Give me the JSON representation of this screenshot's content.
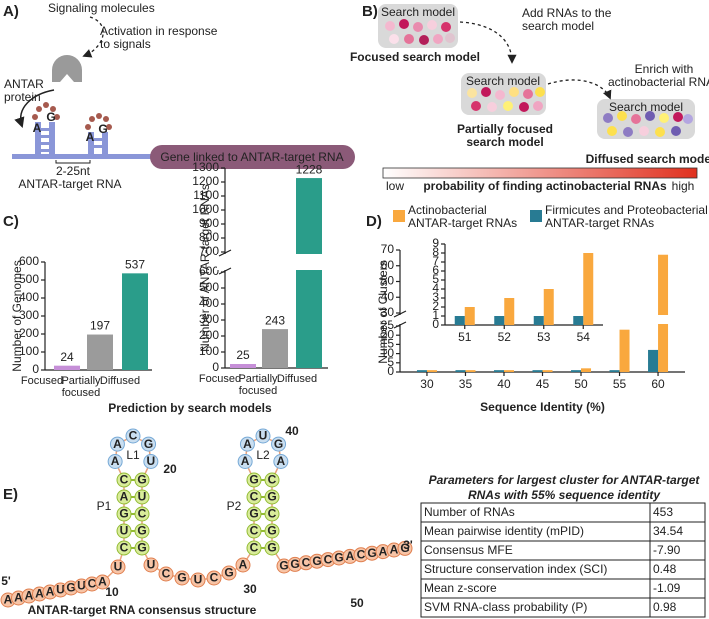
{
  "panel_a": {
    "label": "A)",
    "signal_label": "Signaling molecules",
    "activation_label": [
      "Activation in response",
      "to signals"
    ],
    "protein_label": [
      "ANTAR",
      "protein"
    ],
    "loop_letters": [
      "A",
      "G",
      "A",
      "G"
    ],
    "spacer_label": "2-25nt",
    "rna_label": "ANTAR-target RNA",
    "gene_label": "Gene linked to ANTAR-target RNA"
  },
  "panel_b": {
    "label": "B)",
    "models": [
      {
        "box_label": "Search model",
        "name": [
          "Focused search model"
        ]
      },
      {
        "box_label": "Search model",
        "name": [
          "Partially focused",
          "search model"
        ]
      },
      {
        "box_label": "Search model",
        "name": [
          "Diffused search model"
        ]
      }
    ],
    "steps": [
      [
        "Add RNAs to the",
        "search model"
      ],
      [
        "Enrich with",
        "actinobacterial RNAs"
      ]
    ],
    "scale": {
      "low": "low",
      "title": "probability of finding actinobacterial RNAs",
      "high": "high"
    }
  },
  "panel_c": {
    "label": "C)",
    "xlabel": "Prediction by search models"
  },
  "panel_d": {
    "label": "D)"
  },
  "chart_data": [
    {
      "type": "bar",
      "ylabel": "Number of Genomes",
      "categories": [
        "Focused",
        "Partially focused",
        "Diffused"
      ],
      "values": [
        24,
        197,
        537
      ],
      "colors": [
        "#c68fd8",
        "#9b9b9b",
        "#2a9d8a"
      ],
      "ylim": [
        0,
        600
      ],
      "yticks": [
        0,
        100,
        200,
        300,
        400,
        500,
        600
      ]
    },
    {
      "type": "bar",
      "ylabel": "Number of ANTAR-target RNAs",
      "categories": [
        "Focused",
        "Partially focused",
        "Diffused"
      ],
      "values": [
        25,
        243,
        1228
      ],
      "colors": [
        "#c68fd8",
        "#9b9b9b",
        "#2a9d8a"
      ],
      "ylim": [
        0,
        1300
      ],
      "ybreak": [
        600,
        700
      ],
      "yticks": [
        0,
        100,
        200,
        300,
        400,
        500,
        600,
        700,
        800,
        900,
        1000,
        1100,
        1200,
        1300
      ]
    },
    {
      "type": "grouped_bar",
      "xlabel": "Sequence Identity (%)",
      "ylabel": "Number of Clusters",
      "x": [
        30,
        35,
        40,
        45,
        50,
        55,
        60
      ],
      "xlim": [
        26.5,
        63.5
      ],
      "xticks": [
        30,
        35,
        40,
        45,
        50,
        55,
        60
      ],
      "ylim": [
        0,
        70
      ],
      "ybreak": [
        25,
        30
      ],
      "yticks": [
        0,
        5,
        10,
        15,
        20,
        25,
        30,
        40,
        50,
        60,
        70
      ],
      "legend": "top",
      "series": [
        {
          "name": "Actinobacterial ANTAR-target RNAs",
          "color": "#f9a83e",
          "values": [
            1,
            1,
            1,
            1,
            2,
            23,
            67
          ]
        },
        {
          "name": "Firmicutes and Proteobacterial ANTAR-target RNAs",
          "color": "#287b93",
          "values": [
            1,
            1,
            1,
            1,
            1,
            1,
            12
          ]
        }
      ]
    },
    {
      "type": "grouped_bar",
      "x": [
        51,
        52,
        53,
        54
      ],
      "xlim": [
        50.5,
        54.5
      ],
      "xticks": [
        51,
        52,
        53,
        54
      ],
      "ylim": [
        0,
        9
      ],
      "yticks": [
        0,
        1,
        2,
        3,
        4,
        5,
        6,
        7,
        8,
        9
      ],
      "series": [
        {
          "color": "#f9a83e",
          "values": [
            2,
            3,
            4,
            8
          ]
        },
        {
          "color": "#287b93",
          "values": [
            1,
            1,
            1,
            1
          ]
        }
      ]
    }
  ],
  "panel_e": {
    "label": "E)",
    "title": "ANTAR-target RNA consensus structure",
    "five_prime": "5'",
    "three_prime": "3'",
    "stems": [
      "P1",
      "P2"
    ],
    "loops": [
      "L1",
      "L2"
    ],
    "position_labels": [
      10,
      20,
      30,
      40,
      50
    ],
    "nucleotides": [
      "A",
      "A",
      "A",
      "A",
      "A",
      "U",
      "G",
      "U",
      "C",
      "A",
      "U",
      "C",
      "U",
      "G",
      "A",
      "C",
      "A",
      "A",
      "C",
      "G",
      "U",
      "G",
      "U",
      "C",
      "G",
      "G",
      "U",
      "C",
      "G",
      "U",
      "C",
      "G",
      "A",
      "C",
      "C",
      "G",
      "C",
      "G",
      "A",
      "A",
      "U",
      "G",
      "A",
      "C",
      "G",
      "C",
      "G",
      "G",
      "G",
      "G",
      "C",
      "G",
      "C",
      "G",
      "A",
      "C",
      "G",
      "A",
      "A",
      "G"
    ]
  },
  "table": {
    "title": [
      "Parameters for largest cluster for ANTAR-target",
      "RNAs with 55% sequence identity"
    ],
    "rows": [
      [
        "Number of RNAs",
        "453"
      ],
      [
        "Mean pairwise identity (mPID)",
        "34.54"
      ],
      [
        "Consensus MFE",
        "-7.90"
      ],
      [
        "Structure conservation index (SCI)",
        "0.48"
      ],
      [
        "Mean z-score",
        "-1.09"
      ],
      [
        "SVM RNA-class probability (P)",
        "0.98"
      ]
    ]
  }
}
